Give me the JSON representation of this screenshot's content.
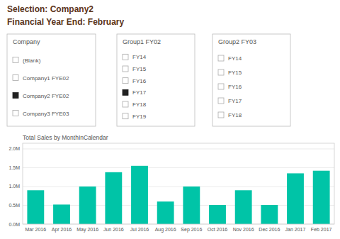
{
  "title": "Selection: Company2",
  "subtitle": "Financial Year End:  February",
  "filters": [
    {
      "title": "Company",
      "items": [
        "(Blank)",
        "Company1 FYE02",
        "Company2 FYE02",
        "Company3 FYE03"
      ],
      "checked": [
        false,
        false,
        true,
        false
      ]
    },
    {
      "title": "Group1 FY02",
      "items": [
        "FY14",
        "FY15",
        "FY16",
        "FY17",
        "FY18",
        "FY19"
      ],
      "checked": [
        false,
        false,
        false,
        true,
        false,
        false
      ]
    },
    {
      "title": "Group2 FY03",
      "items": [
        "FY14",
        "FY15",
        "FY16",
        "FY17",
        "FY18"
      ],
      "checked": [
        false,
        false,
        false,
        false,
        false
      ]
    }
  ],
  "chart_data": {
    "type": "bar",
    "title": "Total Sales by MonthInCalendar",
    "categories": [
      "Mar 2016",
      "Apr 2016",
      "May 2016",
      "Jun 2016",
      "Jul 2016",
      "Aug 2016",
      "Sep 2016",
      "Oct 2016",
      "Nov 2016",
      "Dec 2016",
      "Jan 2017",
      "Feb 2017"
    ],
    "values": [
      0.9,
      0.52,
      1.0,
      1.38,
      1.55,
      0.6,
      1.0,
      0.51,
      0.9,
      0.51,
      1.35,
      1.42
    ],
    "color": "#00c4a7",
    "ylim": [
      0,
      2.15
    ],
    "yticks": [
      {
        "value": 0.0,
        "label": "0.0M"
      },
      {
        "value": 0.5,
        "label": "0.5M"
      },
      {
        "value": 1.0,
        "label": "1.0M"
      },
      {
        "value": 1.5,
        "label": "1.5M"
      },
      {
        "value": 2.0,
        "label": "2.0M"
      }
    ],
    "grid": true
  }
}
